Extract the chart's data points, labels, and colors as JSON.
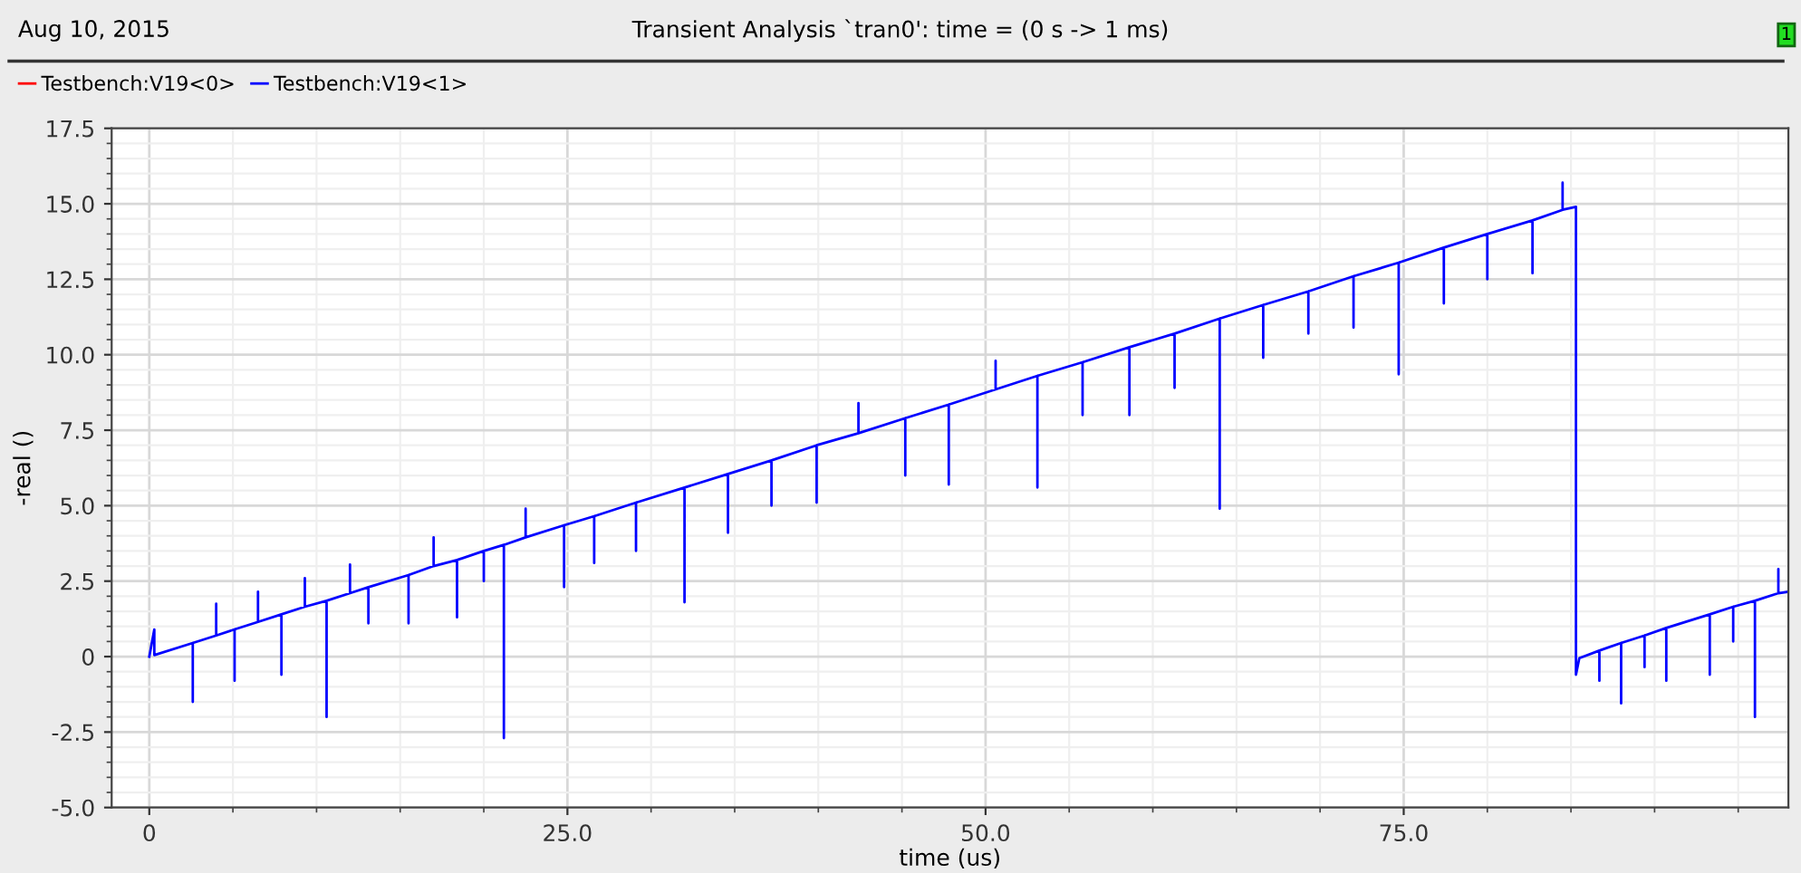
{
  "chart_data": {
    "type": "line",
    "title": "Transient Analysis `tran0': time = (0 s -> 1 ms)",
    "xlabel": "time (us)",
    "ylabel": "-real ()",
    "annotations": [
      "Aug 10, 2015",
      "1"
    ],
    "series": [
      {
        "name": "Testbench:V19<0>",
        "color": "#ff0000"
      },
      {
        "name": "Testbench:V19<1>",
        "color": "#0000ff",
        "x": [
          0,
          0.3,
          0.3,
          2.6,
          2.6,
          2.6,
          4.0,
          4.0,
          4.0,
          5.1,
          5.1,
          5.1,
          6.5,
          6.5,
          6.5,
          7.9,
          7.9,
          7.9,
          9.3,
          9.3,
          9.3,
          10.6,
          10.6,
          10.6,
          12.0,
          12.0,
          12.0,
          13.1,
          13.1,
          13.1,
          15.5,
          15.5,
          15.5,
          17.0,
          17.0,
          17.0,
          18.4,
          18.4,
          18.4,
          20.0,
          20.0,
          20.0,
          21.2,
          21.2,
          21.2,
          22.5,
          22.5,
          22.5,
          24.8,
          24.8,
          24.8,
          26.6,
          26.6,
          26.6,
          29.1,
          29.1,
          29.1,
          32.0,
          32.0,
          32.0,
          34.6,
          34.6,
          34.6,
          37.2,
          37.2,
          37.2,
          39.9,
          39.9,
          39.9,
          42.4,
          42.4,
          42.4,
          45.2,
          45.2,
          45.2,
          47.8,
          47.8,
          47.8,
          50.6,
          50.6,
          50.6,
          53.1,
          53.1,
          53.1,
          55.8,
          55.8,
          55.8,
          58.6,
          58.6,
          58.6,
          61.3,
          61.3,
          61.3,
          64.0,
          64.0,
          64.0,
          66.6,
          66.6,
          66.6,
          69.3,
          69.3,
          69.3,
          72.0,
          72.0,
          72.0,
          74.7,
          74.7,
          74.7,
          77.4,
          77.4,
          77.4,
          80.0,
          80.0,
          80.0,
          82.7,
          82.7,
          82.7,
          84.5,
          84.5,
          84.5,
          85.3,
          85.3,
          85.5,
          86.7,
          86.7,
          86.7,
          88.0,
          88.0,
          88.0,
          89.4,
          89.4,
          89.4,
          90.7,
          90.7,
          90.7,
          93.3,
          93.3,
          93.3,
          94.7,
          94.7,
          94.7,
          96.0,
          96.0,
          96.0,
          97.4,
          97.4,
          97.4,
          98.0
        ],
        "values": [
          0,
          0.9,
          0.05,
          0.45,
          -1.5,
          0.45,
          0.7,
          1.75,
          0.7,
          0.9,
          -0.8,
          0.9,
          1.15,
          2.15,
          1.15,
          1.4,
          -0.6,
          1.4,
          1.65,
          2.6,
          1.65,
          1.85,
          -2.0,
          1.85,
          2.1,
          3.05,
          2.1,
          2.3,
          1.1,
          2.3,
          2.7,
          1.1,
          2.7,
          3.0,
          3.95,
          3.0,
          3.2,
          1.3,
          3.2,
          3.5,
          2.5,
          3.5,
          3.7,
          -2.7,
          3.7,
          3.95,
          4.9,
          3.95,
          4.35,
          2.3,
          4.35,
          4.65,
          3.1,
          4.65,
          5.1,
          3.5,
          5.1,
          5.6,
          1.8,
          5.6,
          6.05,
          4.1,
          6.05,
          6.5,
          5.0,
          6.5,
          7.0,
          5.1,
          7.0,
          7.4,
          8.4,
          7.4,
          7.9,
          6.0,
          7.9,
          8.35,
          5.7,
          8.35,
          8.85,
          9.8,
          8.85,
          9.3,
          5.6,
          9.3,
          9.75,
          8.0,
          9.75,
          10.25,
          8.0,
          10.25,
          10.7,
          8.9,
          10.7,
          11.2,
          4.9,
          11.2,
          11.65,
          9.9,
          11.65,
          12.1,
          10.7,
          12.1,
          12.6,
          10.9,
          12.6,
          13.05,
          9.35,
          13.05,
          13.55,
          11.7,
          13.55,
          14.0,
          12.5,
          14.0,
          14.45,
          12.7,
          14.45,
          14.8,
          15.7,
          14.8,
          14.9,
          -0.6,
          -0.05,
          0.2,
          -0.8,
          0.2,
          0.45,
          -1.55,
          0.45,
          0.7,
          -0.35,
          0.7,
          0.95,
          -0.8,
          0.95,
          1.4,
          -0.6,
          1.4,
          1.65,
          0.5,
          1.65,
          1.85,
          -2.0,
          1.85,
          2.1,
          2.9,
          2.1,
          2.15
        ]
      }
    ],
    "xlim": [
      -2.25,
      98
    ],
    "ylim": [
      -5,
      17.5
    ],
    "xticks": [
      0,
      {
        "value": 25,
        "label": "25.0"
      },
      {
        "value": 50,
        "label": "50.0"
      },
      {
        "value": 75,
        "label": "75.0"
      }
    ],
    "yticks": [
      {
        "value": -5,
        "label": "-5.0"
      },
      -2.5,
      {
        "value": 0,
        "label": "0"
      },
      2.5,
      {
        "value": 5,
        "label": "5.0"
      },
      7.5,
      {
        "value": 10,
        "label": "10.0"
      },
      12.5,
      {
        "value": 15,
        "label": "15.0"
      },
      17.5
    ],
    "grid": true,
    "legend": "top left"
  }
}
